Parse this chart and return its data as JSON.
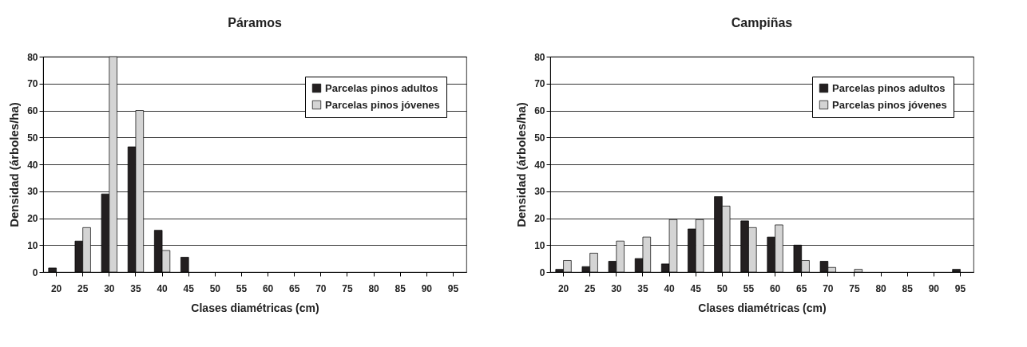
{
  "chart_data": [
    {
      "type": "bar",
      "title": "Páramos",
      "xlabel": "Clases diamétricas (cm)",
      "ylabel": "Densidad (árboles/ha)",
      "categories": [
        "20",
        "25",
        "30",
        "35",
        "40",
        "45",
        "50",
        "55",
        "60",
        "65",
        "70",
        "75",
        "80",
        "85",
        "90",
        "95"
      ],
      "series": [
        {
          "name": "Parcelas pinos adultos",
          "color": "#231f20",
          "values": [
            1.5,
            11.5,
            29,
            46.5,
            15.5,
            5.5,
            0,
            0,
            0,
            0,
            0,
            0,
            0,
            0,
            0,
            0
          ]
        },
        {
          "name": "Parcelas pinos jóvenes",
          "color": "#d4d4d4",
          "values": [
            0,
            16.5,
            80,
            60,
            8,
            0,
            0,
            0,
            0,
            0,
            0,
            0,
            0,
            0,
            0,
            0
          ]
        }
      ],
      "ylim": [
        0,
        80
      ],
      "yticks": [
        0,
        10,
        20,
        30,
        40,
        50,
        60,
        70,
        80
      ],
      "grid": "y",
      "legend": "top right"
    },
    {
      "type": "bar",
      "title": "Campiñas",
      "xlabel": "Clases diamétricas (cm)",
      "ylabel": "Densidad (árboles/ha)",
      "categories": [
        "20",
        "25",
        "30",
        "35",
        "40",
        "45",
        "50",
        "55",
        "60",
        "65",
        "70",
        "75",
        "80",
        "85",
        "90",
        "95"
      ],
      "series": [
        {
          "name": "Parcelas pinos adultos",
          "color": "#231f20",
          "values": [
            1,
            2,
            4,
            5,
            3,
            16,
            28,
            19,
            13,
            10,
            4,
            0,
            0,
            0,
            0,
            1
          ]
        },
        {
          "name": "Parcelas pinos jóvenes",
          "color": "#d4d4d4",
          "values": [
            4.3,
            7,
            11.5,
            13,
            19.5,
            19.5,
            24.5,
            16.5,
            17.5,
            4.3,
            1.7,
            1,
            0,
            0,
            0,
            0
          ]
        }
      ],
      "ylim": [
        0,
        80
      ],
      "yticks": [
        0,
        10,
        20,
        30,
        40,
        50,
        60,
        70,
        80
      ],
      "grid": "y",
      "legend": "top right"
    }
  ]
}
